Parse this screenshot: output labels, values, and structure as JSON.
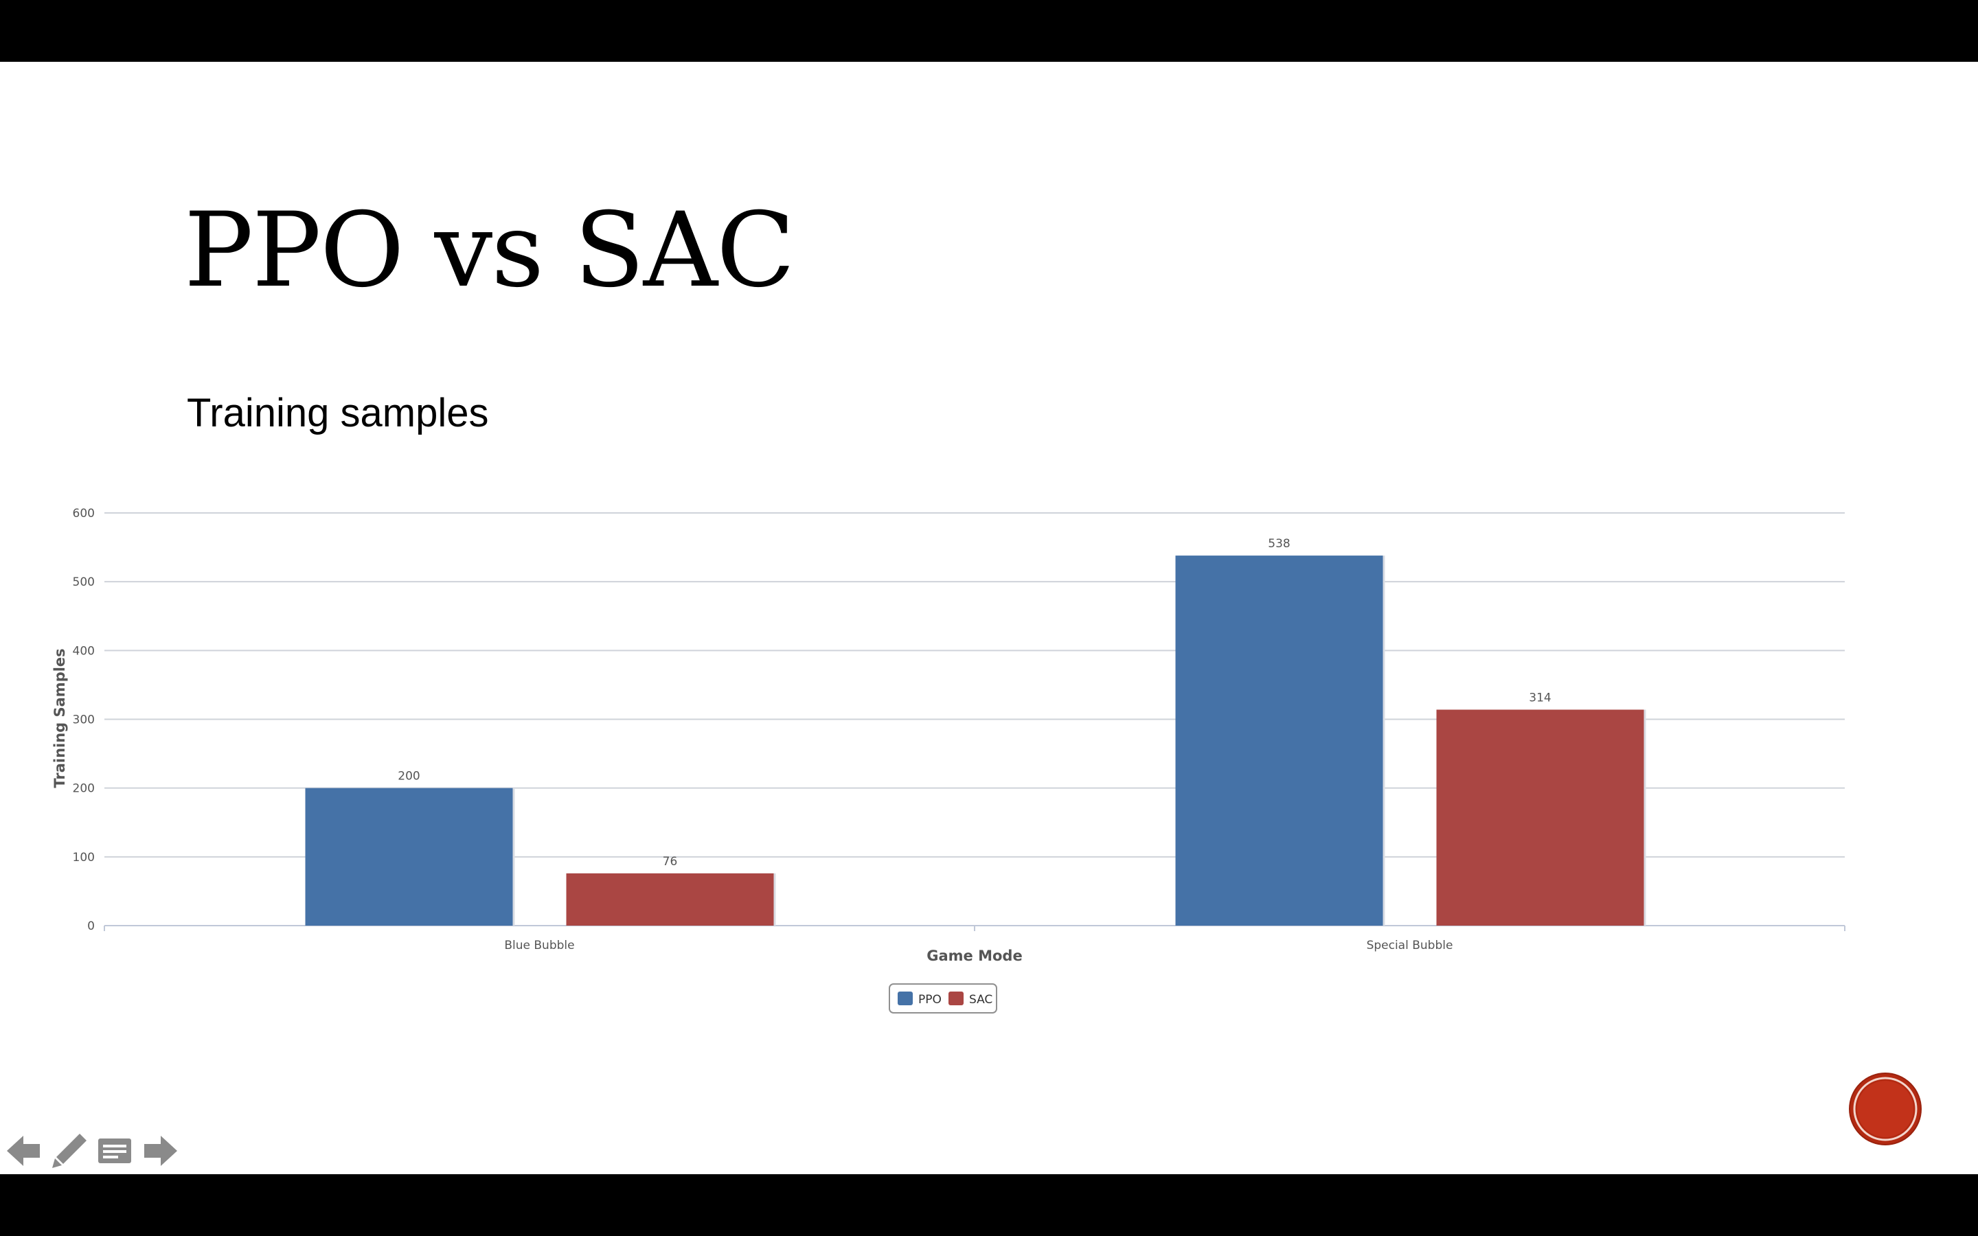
{
  "slide": {
    "title": "PPO vs SAC",
    "subtitle": "Training samples"
  },
  "chart_data": {
    "type": "bar",
    "categories": [
      "Blue Bubble",
      "Special Bubble"
    ],
    "series": [
      {
        "name": "PPO",
        "values": [
          200,
          538
        ],
        "color": "#4572a7"
      },
      {
        "name": "SAC",
        "values": [
          76,
          314
        ],
        "color": "#aa4643"
      }
    ],
    "xlabel": "Game Mode",
    "ylabel": "Training Samples",
    "ylim": [
      0,
      600
    ],
    "yticks": [
      0,
      100,
      200,
      300,
      400,
      500,
      600
    ],
    "grid": true,
    "legend": "bottom-center"
  },
  "colors": {
    "background": "#ffffff",
    "letterbox": "#000000",
    "nav_icon": "#8a8a8a",
    "record_button": "#b32a12"
  },
  "controls": {
    "icons": [
      "back-arrow-icon",
      "pen-icon",
      "notes-icon",
      "forward-arrow-icon"
    ]
  }
}
